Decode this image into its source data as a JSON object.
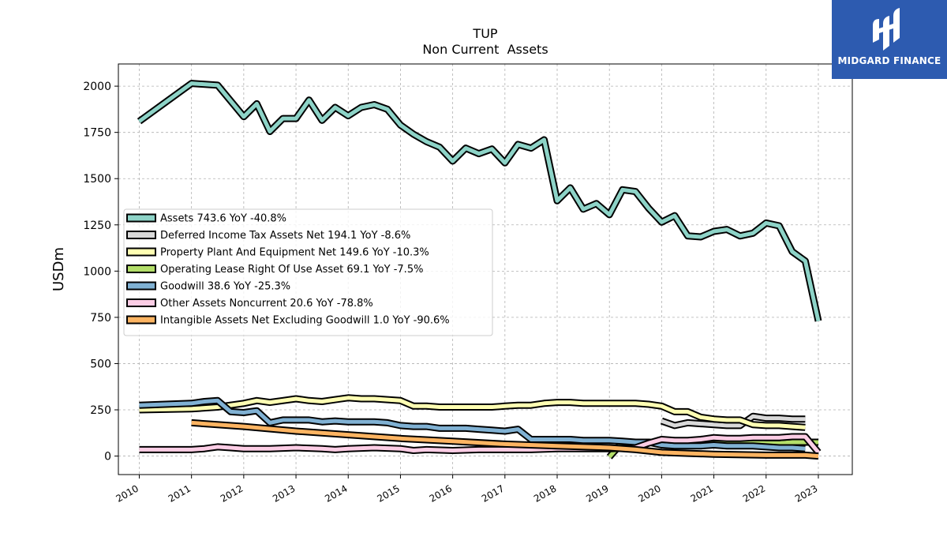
{
  "chart_data": {
    "type": "line",
    "title": "TUP",
    "subtitle": "Non Current  Assets",
    "ylabel": "USDm",
    "xlabel": "",
    "ylim": [
      -100,
      2120
    ],
    "xlim": [
      2009.6,
      2023.65
    ],
    "yticks": [
      0,
      250,
      500,
      750,
      1000,
      1250,
      1500,
      1750,
      2000
    ],
    "xticks": [
      2010,
      2011,
      2012,
      2013,
      2014,
      2015,
      2016,
      2017,
      2018,
      2019,
      2020,
      2021,
      2022,
      2023
    ],
    "grid": true,
    "legend_position": "center-left",
    "series": [
      {
        "name": "Assets  743.6 YoY -40.8%",
        "color": "#8dd3c7",
        "points": [
          [
            2010,
            1810
          ],
          [
            2011,
            2015
          ],
          [
            2011.5,
            2005
          ],
          [
            2012,
            1835
          ],
          [
            2012.25,
            1905
          ],
          [
            2012.5,
            1755
          ],
          [
            2012.75,
            1825
          ],
          [
            2013,
            1825
          ],
          [
            2013.25,
            1925
          ],
          [
            2013.5,
            1815
          ],
          [
            2013.75,
            1885
          ],
          [
            2014,
            1840
          ],
          [
            2014.25,
            1885
          ],
          [
            2014.5,
            1900
          ],
          [
            2014.75,
            1875
          ],
          [
            2015,
            1790
          ],
          [
            2015.25,
            1740
          ],
          [
            2015.5,
            1700
          ],
          [
            2015.75,
            1670
          ],
          [
            2016,
            1595
          ],
          [
            2016.25,
            1665
          ],
          [
            2016.5,
            1635
          ],
          [
            2016.75,
            1660
          ],
          [
            2017,
            1585
          ],
          [
            2017.25,
            1685
          ],
          [
            2017.5,
            1665
          ],
          [
            2017.75,
            1710
          ],
          [
            2018,
            1380
          ],
          [
            2018.25,
            1450
          ],
          [
            2018.5,
            1335
          ],
          [
            2018.75,
            1365
          ],
          [
            2019,
            1305
          ],
          [
            2019.25,
            1440
          ],
          [
            2019.5,
            1430
          ],
          [
            2019.75,
            1340
          ],
          [
            2020,
            1265
          ],
          [
            2020.25,
            1300
          ],
          [
            2020.5,
            1190
          ],
          [
            2020.75,
            1185
          ],
          [
            2021,
            1215
          ],
          [
            2021.25,
            1225
          ],
          [
            2021.5,
            1190
          ],
          [
            2021.75,
            1205
          ],
          [
            2022,
            1260
          ],
          [
            2022.25,
            1245
          ],
          [
            2022.5,
            1105
          ],
          [
            2022.75,
            1055
          ],
          [
            2023,
            730
          ]
        ]
      },
      {
        "name": "Deferred Income Tax Assets Net  194.1 YoY -8.6%",
        "color": "#d9d9d9",
        "points": [
          [
            2020,
            190
          ],
          [
            2020.25,
            165
          ],
          [
            2020.5,
            180
          ],
          [
            2020.75,
            175
          ],
          [
            2021,
            170
          ],
          [
            2021.25,
            165
          ],
          [
            2021.5,
            165
          ],
          [
            2021.75,
            215
          ],
          [
            2022,
            205
          ],
          [
            2022.25,
            205
          ],
          [
            2022.5,
            200
          ],
          [
            2022.75,
            200
          ]
        ]
      },
      {
        "name": "Property Plant And Equipment Net  149.6 YoY -10.3%",
        "color": "#ffffb3",
        "points": [
          [
            2010,
            250
          ],
          [
            2011,
            255
          ],
          [
            2011.5,
            265
          ],
          [
            2012,
            285
          ],
          [
            2012.25,
            300
          ],
          [
            2012.5,
            290
          ],
          [
            2012.75,
            300
          ],
          [
            2013,
            310
          ],
          [
            2013.25,
            300
          ],
          [
            2013.5,
            295
          ],
          [
            2013.75,
            305
          ],
          [
            2014,
            315
          ],
          [
            2014.25,
            310
          ],
          [
            2014.5,
            310
          ],
          [
            2014.75,
            305
          ],
          [
            2015,
            300
          ],
          [
            2015.25,
            270
          ],
          [
            2015.5,
            270
          ],
          [
            2015.75,
            265
          ],
          [
            2016,
            265
          ],
          [
            2016.25,
            265
          ],
          [
            2016.5,
            265
          ],
          [
            2016.75,
            265
          ],
          [
            2017,
            270
          ],
          [
            2017.25,
            275
          ],
          [
            2017.5,
            275
          ],
          [
            2017.75,
            285
          ],
          [
            2018,
            290
          ],
          [
            2018.25,
            290
          ],
          [
            2018.5,
            285
          ],
          [
            2018.75,
            285
          ],
          [
            2019,
            285
          ],
          [
            2019.25,
            285
          ],
          [
            2019.5,
            285
          ],
          [
            2019.75,
            280
          ],
          [
            2020,
            270
          ],
          [
            2020.25,
            240
          ],
          [
            2020.5,
            240
          ],
          [
            2020.75,
            210
          ],
          [
            2021,
            200
          ],
          [
            2021.25,
            195
          ],
          [
            2021.5,
            195
          ],
          [
            2021.75,
            170
          ],
          [
            2022,
            165
          ],
          [
            2022.25,
            165
          ],
          [
            2022.5,
            160
          ],
          [
            2022.75,
            155
          ]
        ]
      },
      {
        "name": "Operating Lease Right Of Use Asset  69.1 YoY -7.5%",
        "color": "#b3de69",
        "points": [
          [
            2019,
            -5
          ],
          [
            2019.25,
            75
          ],
          [
            2019.5,
            75
          ],
          [
            2019.75,
            75
          ],
          [
            2020,
            70
          ],
          [
            2020.25,
            70
          ],
          [
            2020.5,
            70
          ],
          [
            2020.75,
            70
          ],
          [
            2021,
            75
          ],
          [
            2021.25,
            70
          ],
          [
            2021.5,
            70
          ],
          [
            2021.75,
            75
          ],
          [
            2022,
            70
          ],
          [
            2022.25,
            70
          ],
          [
            2022.5,
            75
          ],
          [
            2022.75,
            75
          ],
          [
            2023,
            75
          ]
        ]
      },
      {
        "name": "Goodwill  38.6 YoY -25.3%",
        "color": "#80b1d3",
        "points": [
          [
            2010,
            275
          ],
          [
            2011,
            285
          ],
          [
            2011.25,
            295
          ],
          [
            2011.5,
            300
          ],
          [
            2011.75,
            240
          ],
          [
            2012,
            235
          ],
          [
            2012.25,
            245
          ],
          [
            2012.5,
            180
          ],
          [
            2012.75,
            195
          ],
          [
            2013,
            195
          ],
          [
            2013.25,
            195
          ],
          [
            2013.5,
            185
          ],
          [
            2013.75,
            190
          ],
          [
            2014,
            185
          ],
          [
            2014.25,
            185
          ],
          [
            2014.5,
            185
          ],
          [
            2014.75,
            180
          ],
          [
            2015,
            165
          ],
          [
            2015.25,
            160
          ],
          [
            2015.5,
            160
          ],
          [
            2015.75,
            150
          ],
          [
            2016,
            150
          ],
          [
            2016.25,
            150
          ],
          [
            2016.5,
            145
          ],
          [
            2016.75,
            140
          ],
          [
            2017,
            135
          ],
          [
            2017.25,
            145
          ],
          [
            2017.5,
            90
          ],
          [
            2017.75,
            90
          ],
          [
            2018,
            90
          ],
          [
            2018.25,
            90
          ],
          [
            2018.5,
            85
          ],
          [
            2018.75,
            85
          ],
          [
            2019,
            85
          ],
          [
            2019.25,
            80
          ],
          [
            2019.5,
            75
          ],
          [
            2019.75,
            75
          ],
          [
            2020,
            60
          ],
          [
            2020.25,
            55
          ],
          [
            2020.5,
            55
          ],
          [
            2020.75,
            55
          ],
          [
            2021,
            60
          ],
          [
            2021.25,
            55
          ],
          [
            2021.5,
            55
          ],
          [
            2021.75,
            55
          ],
          [
            2022,
            50
          ],
          [
            2022.25,
            45
          ],
          [
            2022.5,
            45
          ],
          [
            2022.75,
            40
          ]
        ]
      },
      {
        "name": "Other Assets Noncurrent  20.6 YoY -78.8%",
        "color": "#fccde5",
        "points": [
          [
            2010,
            35
          ],
          [
            2011,
            35
          ],
          [
            2011.25,
            40
          ],
          [
            2011.5,
            50
          ],
          [
            2011.75,
            45
          ],
          [
            2012,
            40
          ],
          [
            2012.5,
            40
          ],
          [
            2013,
            45
          ],
          [
            2013.5,
            40
          ],
          [
            2013.75,
            35
          ],
          [
            2014,
            40
          ],
          [
            2014.5,
            45
          ],
          [
            2015,
            40
          ],
          [
            2015.25,
            30
          ],
          [
            2015.5,
            35
          ],
          [
            2016,
            30
          ],
          [
            2016.5,
            35
          ],
          [
            2017,
            35
          ],
          [
            2017.5,
            35
          ],
          [
            2018,
            40
          ],
          [
            2018.5,
            40
          ],
          [
            2019,
            40
          ],
          [
            2019.5,
            45
          ],
          [
            2019.75,
            70
          ],
          [
            2020,
            90
          ],
          [
            2020.25,
            85
          ],
          [
            2020.5,
            85
          ],
          [
            2020.75,
            90
          ],
          [
            2021,
            100
          ],
          [
            2021.25,
            95
          ],
          [
            2021.5,
            95
          ],
          [
            2021.75,
            100
          ],
          [
            2022,
            100
          ],
          [
            2022.25,
            100
          ],
          [
            2022.5,
            105
          ],
          [
            2022.75,
            105
          ],
          [
            2023,
            20
          ]
        ]
      },
      {
        "name": "Intangible Assets Net Excluding Goodwill  1.0 YoY -90.6%",
        "color": "#fdb462",
        "points": [
          [
            2011,
            180
          ],
          [
            2012,
            160
          ],
          [
            2013,
            135
          ],
          [
            2014,
            115
          ],
          [
            2015,
            95
          ],
          [
            2016,
            80
          ],
          [
            2017,
            65
          ],
          [
            2018,
            55
          ],
          [
            2019,
            45
          ],
          [
            2019.5,
            35
          ],
          [
            2020,
            20
          ],
          [
            2020.5,
            15
          ],
          [
            2021,
            10
          ],
          [
            2022,
            5
          ],
          [
            2022.75,
            5
          ],
          [
            2023,
            0
          ]
        ]
      }
    ]
  },
  "logo": {
    "text": "MIDGARD FINANCE"
  }
}
